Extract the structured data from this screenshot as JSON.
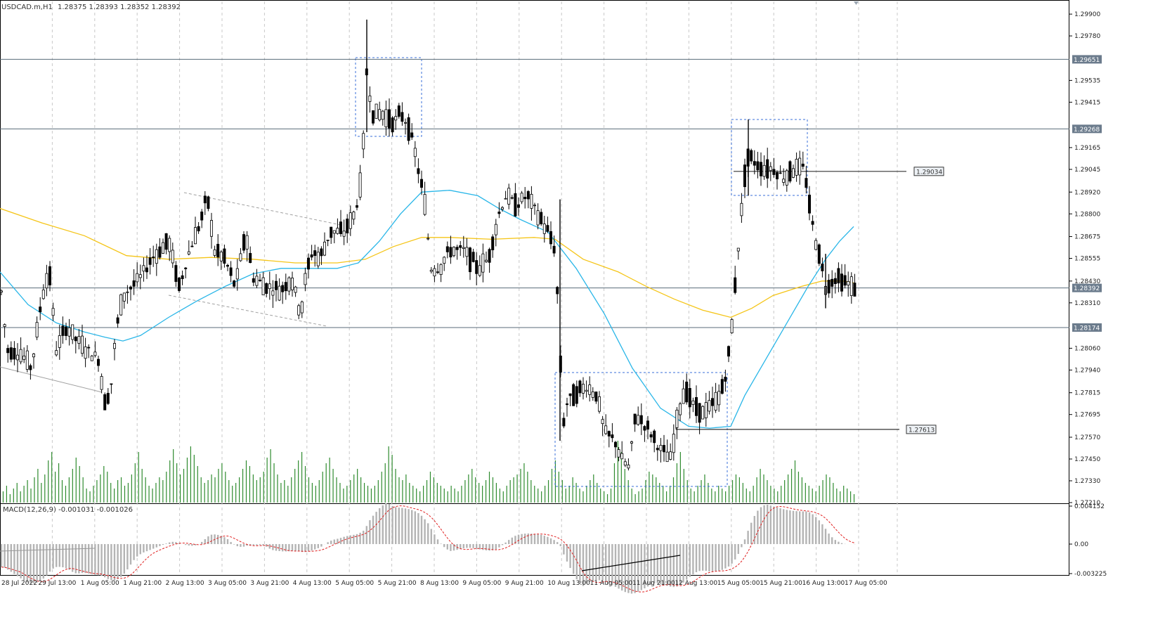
{
  "window": {
    "header_symbol": "USDCAD.m,H1",
    "header_ohlc": "1.28375 1.28393 1.28352 1.28392",
    "macd_header": "MACD(12,26,9) -0.001031 -0.001026"
  },
  "colors": {
    "background": "#ffffff",
    "grid": "#c8c8c8",
    "candle": "#000000",
    "volume": "#2e8b2e",
    "ma_fast": "#29b6e8",
    "ma_slow": "#f5c518",
    "rect": "#3a6fd8",
    "macd_hist": "#b4b4b4",
    "macd_signal": "#e02020",
    "hline": "#5a6b7a",
    "label_bg": "#6b7b8c"
  },
  "chart_data": {
    "type": "candlestick",
    "symbol": "USDCAD.m",
    "timeframe": "H1",
    "ylim": [
      1.2721,
      1.2997
    ],
    "y_ticks": [
      "1.29900",
      "1.29780",
      "1.29535",
      "1.29415",
      "1.29165",
      "1.29045",
      "1.28920",
      "1.28800",
      "1.28675",
      "1.28555",
      "1.28430",
      "1.28310",
      "1.28060",
      "1.27940",
      "1.27815",
      "1.27695",
      "1.27570",
      "1.27450",
      "1.27330",
      "1.27210"
    ],
    "x_ticks": [
      "28 Jul 2022",
      "29 Jul 13:00",
      "1 Aug 05:00",
      "1 Aug 21:00",
      "2 Aug 13:00",
      "3 Aug 05:00",
      "3 Aug 21:00",
      "4 Aug 13:00",
      "5 Aug 05:00",
      "5 Aug 21:00",
      "8 Aug 13:00",
      "9 Aug 05:00",
      "9 Aug 21:00",
      "10 Aug 13:00",
      "11 Aug 05:00",
      "11 Aug 21:00",
      "12 Aug 13:00",
      "15 Aug 05:00",
      "15 Aug 21:00",
      "16 Aug 13:00",
      "17 Aug 05:00"
    ],
    "price_path": [
      [
        0,
        1.2845
      ],
      [
        10,
        1.2805
      ],
      [
        30,
        1.2803
      ],
      [
        45,
        1.2795
      ],
      [
        60,
        1.2835
      ],
      [
        70,
        1.285
      ],
      [
        80,
        1.2805
      ],
      [
        95,
        1.2818
      ],
      [
        110,
        1.281
      ],
      [
        125,
        1.2805
      ],
      [
        140,
        1.28
      ],
      [
        150,
        1.2775
      ],
      [
        158,
        1.2785
      ],
      [
        165,
        1.2815
      ],
      [
        175,
        1.2835
      ],
      [
        200,
        1.2845
      ],
      [
        215,
        1.2855
      ],
      [
        240,
        1.2865
      ],
      [
        255,
        1.284
      ],
      [
        270,
        1.286
      ],
      [
        285,
        1.2875
      ],
      [
        295,
        1.289
      ],
      [
        305,
        1.286
      ],
      [
        320,
        1.2855
      ],
      [
        335,
        1.284
      ],
      [
        350,
        1.287
      ],
      [
        360,
        1.2845
      ],
      [
        380,
        1.284
      ],
      [
        400,
        1.2838
      ],
      [
        415,
        1.2845
      ],
      [
        428,
        1.2825
      ],
      [
        435,
        1.2845
      ],
      [
        445,
        1.286
      ],
      [
        455,
        1.2855
      ],
      [
        470,
        1.287
      ],
      [
        490,
        1.287
      ],
      [
        505,
        1.288
      ],
      [
        515,
        1.29
      ],
      [
        522,
        1.296
      ],
      [
        530,
        1.2935
      ],
      [
        545,
        1.2935
      ],
      [
        560,
        1.293
      ],
      [
        570,
        1.2935
      ],
      [
        580,
        1.293
      ],
      [
        590,
        1.2915
      ],
      [
        600,
        1.2895
      ],
      [
        607,
        1.288
      ],
      [
        612,
        1.285
      ],
      [
        625,
        1.285
      ],
      [
        640,
        1.286
      ],
      [
        660,
        1.286
      ],
      [
        680,
        1.285
      ],
      [
        695,
        1.2855
      ],
      [
        710,
        1.288
      ],
      [
        720,
        1.289
      ],
      [
        735,
        1.2885
      ],
      [
        750,
        1.289
      ],
      [
        765,
        1.288
      ],
      [
        780,
        1.287
      ],
      [
        790,
        1.286
      ],
      [
        797,
        1.281
      ],
      [
        800,
        1.276
      ],
      [
        806,
        1.2775
      ],
      [
        815,
        1.278
      ],
      [
        835,
        1.2785
      ],
      [
        850,
        1.278
      ],
      [
        860,
        1.276
      ],
      [
        875,
        1.2755
      ],
      [
        885,
        1.2745
      ],
      [
        895,
        1.274
      ],
      [
        905,
        1.277
      ],
      [
        915,
        1.2765
      ],
      [
        925,
        1.276
      ],
      [
        940,
        1.275
      ],
      [
        955,
        1.2745
      ],
      [
        965,
        1.277
      ],
      [
        975,
        1.2785
      ],
      [
        985,
        1.2775
      ],
      [
        1000,
        1.277
      ],
      [
        1015,
        1.2775
      ],
      [
        1025,
        1.278
      ],
      [
        1035,
        1.2795
      ],
      [
        1042,
        1.282
      ],
      [
        1048,
        1.285
      ],
      [
        1055,
        1.288
      ],
      [
        1062,
        1.291
      ],
      [
        1070,
        1.291
      ],
      [
        1085,
        1.2905
      ],
      [
        1100,
        1.2905
      ],
      [
        1115,
        1.29
      ],
      [
        1130,
        1.2905
      ],
      [
        1145,
        1.2905
      ],
      [
        1150,
        1.289
      ],
      [
        1158,
        1.287
      ],
      [
        1165,
        1.286
      ],
      [
        1175,
        1.284
      ],
      [
        1190,
        1.2845
      ],
      [
        1205,
        1.2842
      ],
      [
        1215,
        1.2839
      ]
    ],
    "ma_fast": [
      [
        0,
        1.2848
      ],
      [
        40,
        1.283
      ],
      [
        80,
        1.282
      ],
      [
        120,
        1.2815
      ],
      [
        150,
        1.2812
      ],
      [
        175,
        1.281
      ],
      [
        200,
        1.2813
      ],
      [
        240,
        1.2823
      ],
      [
        280,
        1.2832
      ],
      [
        320,
        1.284
      ],
      [
        360,
        1.2847
      ],
      [
        400,
        1.285
      ],
      [
        440,
        1.285
      ],
      [
        480,
        1.285
      ],
      [
        510,
        1.2853
      ],
      [
        540,
        1.2865
      ],
      [
        570,
        1.288
      ],
      [
        600,
        1.2892
      ],
      [
        640,
        1.2893
      ],
      [
        680,
        1.289
      ],
      [
        710,
        1.2883
      ],
      [
        740,
        1.2877
      ],
      [
        780,
        1.287
      ],
      [
        820,
        1.285
      ],
      [
        860,
        1.2825
      ],
      [
        900,
        1.2795
      ],
      [
        940,
        1.2773
      ],
      [
        980,
        1.2763
      ],
      [
        1010,
        1.2762
      ],
      [
        1040,
        1.2763
      ],
      [
        1060,
        1.278
      ],
      [
        1090,
        1.28
      ],
      [
        1120,
        1.282
      ],
      [
        1150,
        1.284
      ],
      [
        1175,
        1.2855
      ],
      [
        1195,
        1.2865
      ],
      [
        1215,
        1.2873
      ]
    ],
    "ma_slow": [
      [
        0,
        1.2883
      ],
      [
        60,
        1.2875
      ],
      [
        120,
        1.2868
      ],
      [
        180,
        1.2857
      ],
      [
        240,
        1.2855
      ],
      [
        300,
        1.2856
      ],
      [
        360,
        1.2855
      ],
      [
        420,
        1.2853
      ],
      [
        480,
        1.2853
      ],
      [
        520,
        1.2855
      ],
      [
        560,
        1.2862
      ],
      [
        600,
        1.2867
      ],
      [
        640,
        1.2867
      ],
      [
        700,
        1.2866
      ],
      [
        760,
        1.2867
      ],
      [
        790,
        1.2866
      ],
      [
        830,
        1.2855
      ],
      [
        880,
        1.2848
      ],
      [
        920,
        1.284
      ],
      [
        960,
        1.2833
      ],
      [
        1000,
        1.2827
      ],
      [
        1040,
        1.2823
      ],
      [
        1070,
        1.2828
      ],
      [
        1100,
        1.2835
      ],
      [
        1140,
        1.284
      ],
      [
        1170,
        1.2843
      ],
      [
        1200,
        1.2843
      ],
      [
        1215,
        1.2842
      ]
    ],
    "volume_bars": [
      4,
      6,
      3,
      5,
      7,
      4,
      6,
      8,
      5,
      9,
      12,
      7,
      10,
      15,
      18,
      11,
      14,
      8,
      6,
      9,
      12,
      16,
      13,
      9,
      5,
      4,
      6,
      8,
      10,
      13,
      11,
      7,
      5,
      8,
      9,
      6,
      7,
      10,
      14,
      18,
      12,
      9,
      6,
      5,
      7,
      9,
      8,
      11,
      15,
      19,
      14,
      10,
      12,
      16,
      20,
      17,
      13,
      9,
      7,
      8,
      10,
      9,
      12,
      14,
      11,
      8,
      6,
      7,
      9,
      12,
      15,
      13,
      10,
      8,
      9,
      11,
      16,
      19,
      14,
      10,
      7,
      8,
      6,
      9,
      12,
      15,
      18,
      13,
      9,
      7,
      6,
      8,
      11,
      14,
      16,
      12,
      9,
      7,
      5,
      6,
      8,
      10,
      12,
      9,
      7,
      6,
      5,
      6,
      8,
      11,
      14,
      20,
      17,
      12,
      9,
      8,
      10,
      7,
      6,
      5,
      4,
      6,
      8,
      11,
      9,
      7,
      6,
      5,
      4,
      6,
      5,
      4,
      6,
      8,
      10,
      12,
      9,
      7,
      6,
      8,
      11,
      9,
      7,
      5,
      4,
      6,
      8,
      9,
      10,
      12,
      14,
      11,
      8,
      6,
      5,
      4,
      6,
      8,
      12,
      15,
      11,
      8,
      5,
      6,
      9,
      7,
      5,
      4,
      6,
      8,
      10,
      7,
      5,
      4,
      3,
      5,
      14,
      22,
      18,
      12,
      8,
      5,
      3,
      4,
      5,
      8,
      11,
      10,
      9,
      7,
      6,
      4,
      6,
      9,
      14,
      18,
      12,
      8,
      5,
      4,
      6,
      8,
      10,
      7,
      5,
      4,
      6,
      5,
      4,
      6,
      8,
      10,
      9,
      7,
      5,
      4,
      6,
      9,
      12,
      10,
      8,
      6,
      5,
      4,
      6,
      8,
      10,
      12,
      15,
      11,
      9,
      7,
      6,
      5,
      4,
      6,
      8,
      10,
      9,
      7,
      5,
      4,
      6,
      5,
      4,
      3
    ],
    "macd_ylim": [
      -0.003225,
      0.004152
    ],
    "macd_ticks": [
      "0.004152",
      "0.00",
      "-0.003225"
    ],
    "horizontal_lines": [
      {
        "label": "1.29651",
        "value": 1.29651
      },
      {
        "label": "1.29268",
        "value": 1.29268
      },
      {
        "label": "1.28392",
        "value": 1.28392
      },
      {
        "label": "1.28174",
        "value": 1.28174
      }
    ],
    "trendline_labels": [
      {
        "label": "1.29034",
        "value": 1.29034
      },
      {
        "label": "1.27613",
        "value": 1.27613
      }
    ]
  }
}
